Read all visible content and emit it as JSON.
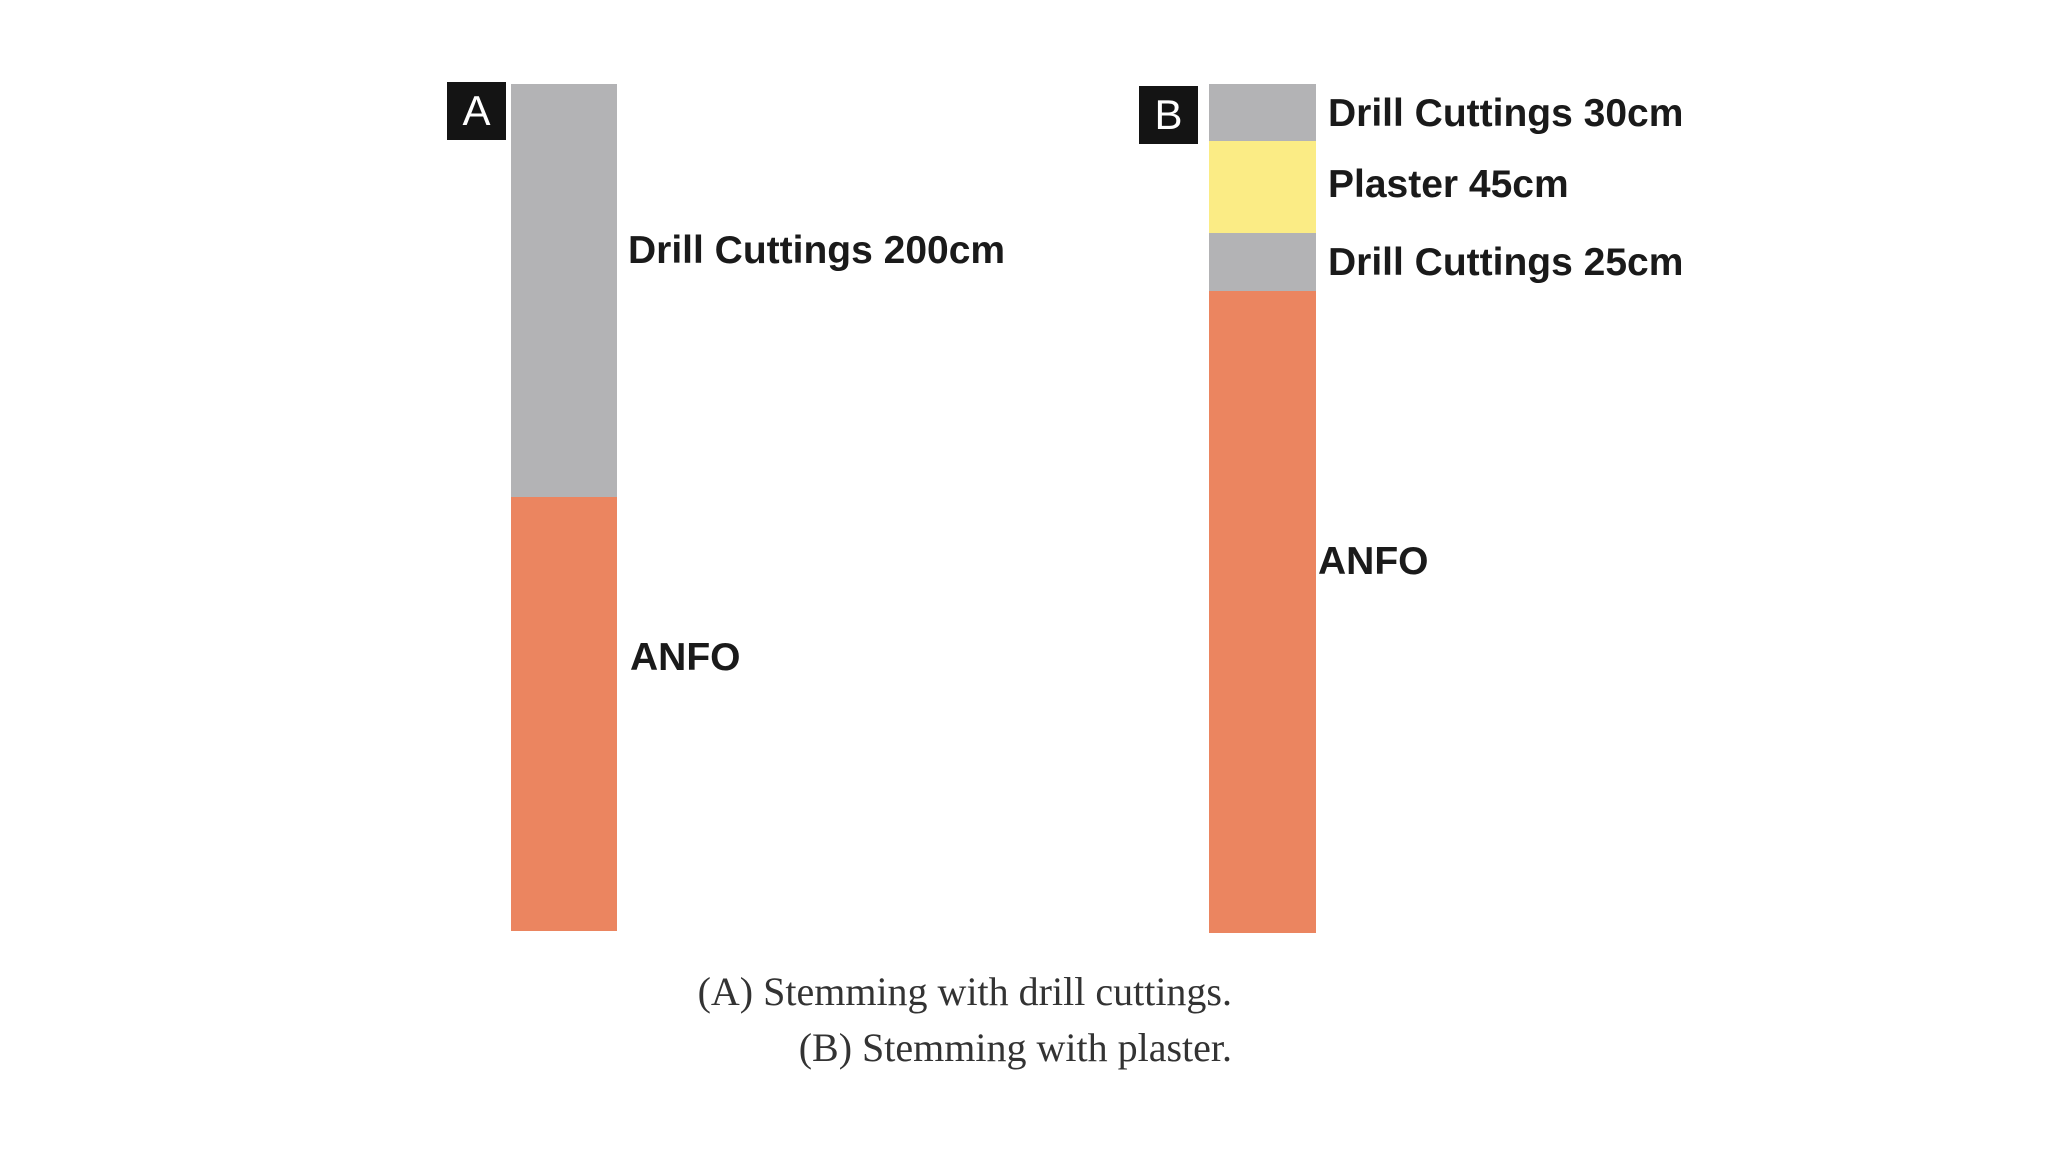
{
  "columns": [
    {
      "tag": "A",
      "segments": [
        {
          "material": "Drill Cuttings",
          "label": "Drill Cuttings 200cm",
          "color": "#b3b3b5"
        },
        {
          "material": "ANFO",
          "label": "ANFO",
          "color": "#eb8560"
        }
      ]
    },
    {
      "tag": "B",
      "segments": [
        {
          "material": "Drill Cuttings",
          "label": "Drill Cuttings 30cm",
          "color": "#b3b3b5"
        },
        {
          "material": "Plaster",
          "label": "Plaster 45cm",
          "color": "#fbec85"
        },
        {
          "material": "Drill Cuttings",
          "label": "Drill Cuttings 25cm",
          "color": "#b3b3b5"
        },
        {
          "material": "ANFO",
          "label": "ANFO",
          "color": "#eb8560"
        }
      ]
    }
  ],
  "caption": {
    "line1": "(A) Stemming with drill cuttings.",
    "line2": "(B) Stemming with plaster."
  }
}
